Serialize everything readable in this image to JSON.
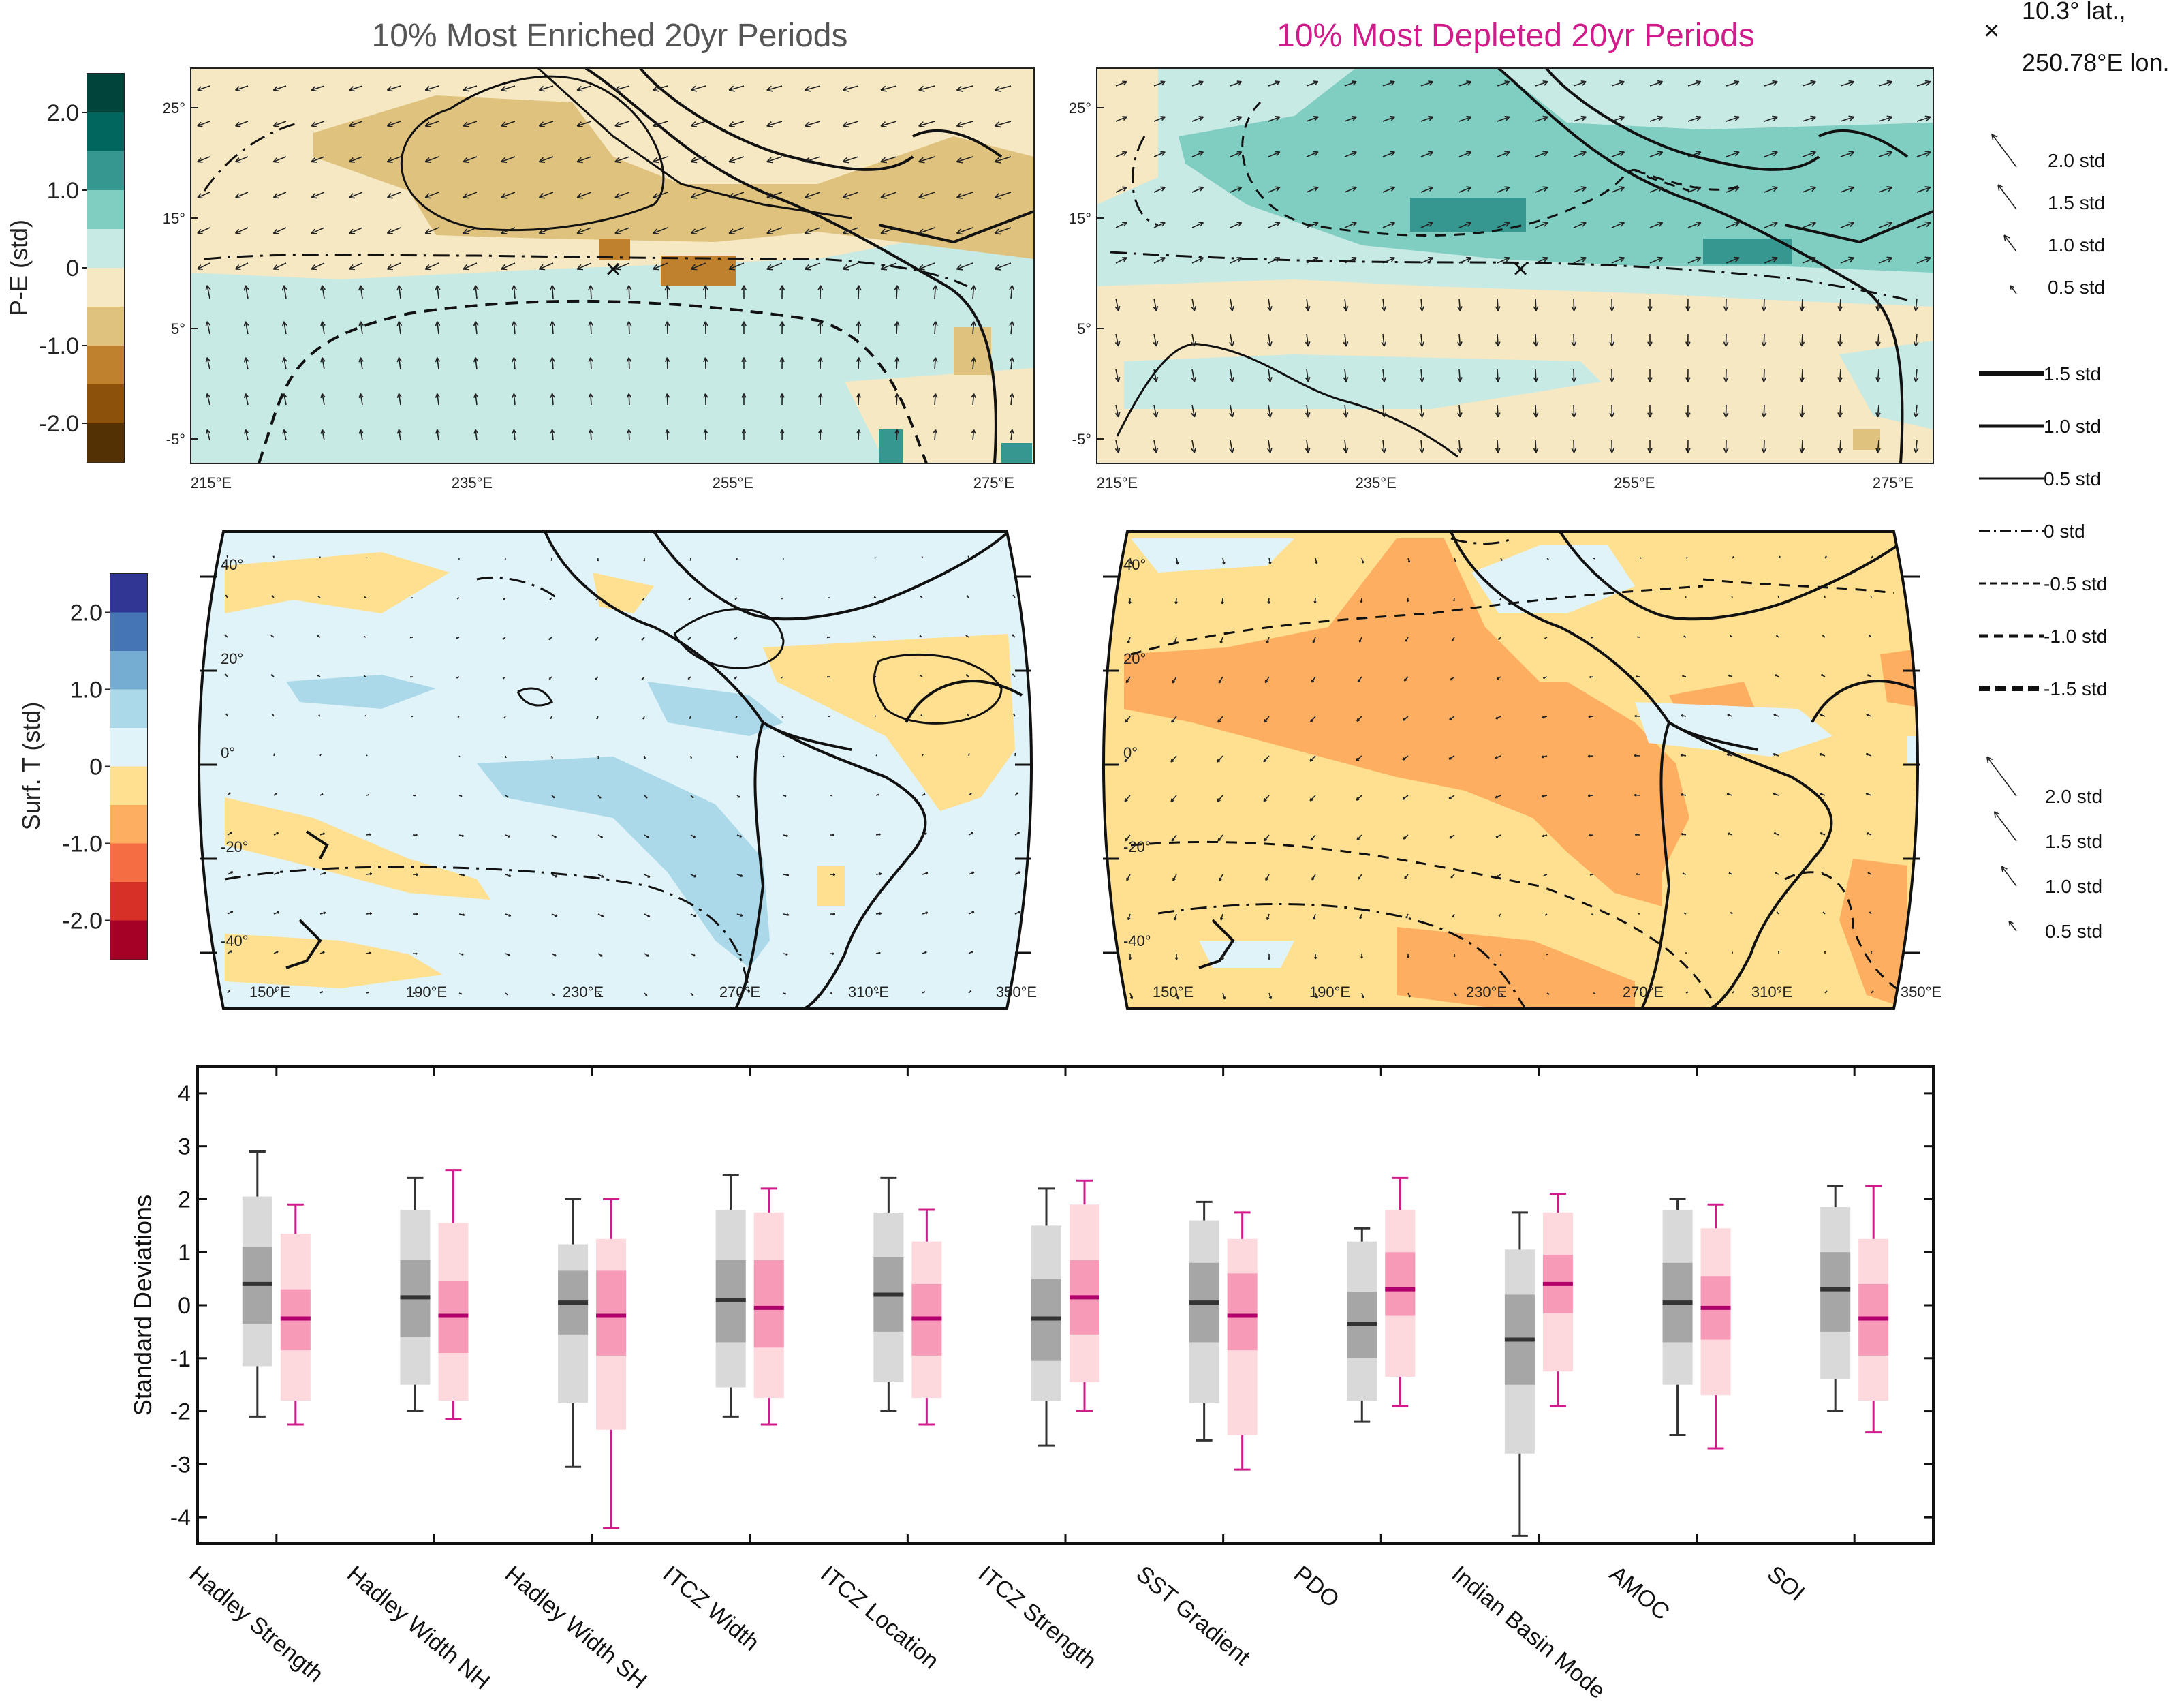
{
  "titles": {
    "enriched": "10% Most Enriched 20yr Periods",
    "depleted": "10% Most Depleted 20yr Periods",
    "enriched_color": "#555555",
    "depleted_color": "#d01c8b"
  },
  "marker": {
    "symbol": "×",
    "line1": "10.3° lat.,",
    "line2": "250.78°E lon."
  },
  "pe_colorbar": {
    "label": "P-E (std)",
    "ticks": [
      "2.0",
      "1.0",
      "0",
      "-1.0",
      "-2.0"
    ],
    "colors": [
      "#00443c",
      "#01665e",
      "#35978f",
      "#80cdc1",
      "#c7eae5",
      "#f6e8c3",
      "#dfc27d",
      "#bf812d",
      "#8c510a",
      "#543005"
    ]
  },
  "t_colorbar": {
    "label": "Surf. T (std)",
    "ticks": [
      "2.0",
      "1.0",
      "0",
      "-1.0",
      "-2.0"
    ],
    "colors": [
      "#313695",
      "#4575b4",
      "#74add1",
      "#abd9e9",
      "#e0f3f8",
      "#fee090",
      "#fdae61",
      "#f46d43",
      "#d73027",
      "#a50026"
    ]
  },
  "top_maps": {
    "lat_ticks": [
      "25°",
      "15°",
      "5°",
      "-5°"
    ],
    "lon_ticks": [
      "215°E",
      "235°E",
      "255°E",
      "275°E"
    ]
  },
  "mid_maps": {
    "lat_ticks": [
      "40°",
      "20°",
      "0°",
      "-20°",
      "-40°"
    ],
    "lon_ticks": [
      "150°E",
      "190°E",
      "230°E",
      "270°E",
      "310°E",
      "350°E"
    ]
  },
  "arrow_legend_top": [
    "2.0 std",
    "1.5 std",
    "1.0 std",
    "0.5 std"
  ],
  "contour_legend": [
    "1.5 std",
    "1.0 std",
    "0.5 std",
    "0 std",
    "-0.5 std",
    "-1.0 std",
    "-1.5 std"
  ],
  "arrow_legend_mid": [
    "2.0 std",
    "1.5 std",
    "1.0 std",
    "0.5 std"
  ],
  "colors": {
    "enriched_box_outer": "#d9d9d9",
    "enriched_box_inner": "#a6a6a6",
    "enriched_median": "#333333",
    "depleted_box_outer": "#fdd9de",
    "depleted_box_inner": "#f79ab8",
    "depleted_median": "#b0006b",
    "depleted_whisker": "#d01c8b",
    "enriched_whisker": "#333333"
  },
  "chart_data": {
    "type": "box",
    "ylabel": "Standard Deviations",
    "ylim": [
      -4.5,
      4.5
    ],
    "yticks": [
      4,
      3,
      2,
      1,
      0,
      -1,
      -2,
      -3,
      -4
    ],
    "categories": [
      "Hadley Strength",
      "Hadley Width NH",
      "Hadley Width SH",
      "ITCZ Width",
      "ITCZ Location",
      "ITCZ Strength",
      "SST Gradient",
      "PDO",
      "Indian Basin Mode",
      "AMOC",
      "SOI"
    ],
    "series": [
      {
        "name": "10% Most Enriched 20yr Periods",
        "whisker_low": [
          -2.1,
          -2.0,
          -3.05,
          -2.1,
          -2.0,
          -2.65,
          -2.55,
          -2.2,
          -4.35,
          -2.45,
          -2.0
        ],
        "outer_low": [
          -1.15,
          -1.5,
          -1.85,
          -1.55,
          -1.45,
          -1.8,
          -1.85,
          -1.8,
          -2.8,
          -1.5,
          -1.4
        ],
        "inner_low": [
          -0.35,
          -0.6,
          -0.55,
          -0.7,
          -0.5,
          -1.05,
          -0.7,
          -1.0,
          -1.5,
          -0.7,
          -0.5
        ],
        "median": [
          0.4,
          0.15,
          0.05,
          0.1,
          0.2,
          -0.25,
          0.05,
          -0.35,
          -0.65,
          0.05,
          0.3
        ],
        "inner_high": [
          1.1,
          0.85,
          0.65,
          0.85,
          0.9,
          0.5,
          0.8,
          0.25,
          0.2,
          0.8,
          1.0
        ],
        "outer_high": [
          2.05,
          1.8,
          1.15,
          1.8,
          1.75,
          1.5,
          1.6,
          1.2,
          1.05,
          1.8,
          1.85
        ],
        "whisker_high": [
          2.9,
          2.4,
          2.0,
          2.45,
          2.4,
          2.2,
          1.95,
          1.45,
          1.75,
          2.0,
          2.25
        ]
      },
      {
        "name": "10% Most Depleted 20yr Periods",
        "whisker_low": [
          -2.25,
          -2.15,
          -4.2,
          -2.25,
          -2.25,
          -2.0,
          -3.1,
          -1.9,
          -1.9,
          -2.7,
          -2.4
        ],
        "outer_low": [
          -1.8,
          -1.8,
          -2.35,
          -1.75,
          -1.75,
          -1.45,
          -2.45,
          -1.35,
          -1.25,
          -1.7,
          -1.8
        ],
        "inner_low": [
          -0.85,
          -0.9,
          -0.95,
          -0.8,
          -0.95,
          -0.55,
          -0.85,
          -0.2,
          -0.15,
          -0.65,
          -0.95
        ],
        "median": [
          -0.25,
          -0.2,
          -0.2,
          -0.05,
          -0.25,
          0.15,
          -0.2,
          0.3,
          0.4,
          -0.05,
          -0.25
        ],
        "inner_high": [
          0.3,
          0.45,
          0.65,
          0.85,
          0.4,
          0.85,
          0.6,
          1.0,
          0.95,
          0.55,
          0.4
        ],
        "outer_high": [
          1.35,
          1.55,
          1.25,
          1.75,
          1.2,
          1.9,
          1.25,
          1.8,
          1.75,
          1.45,
          1.25
        ],
        "whisker_high": [
          1.9,
          2.55,
          2.0,
          2.2,
          1.8,
          2.35,
          1.75,
          2.4,
          2.1,
          1.9,
          2.25
        ]
      }
    ]
  }
}
